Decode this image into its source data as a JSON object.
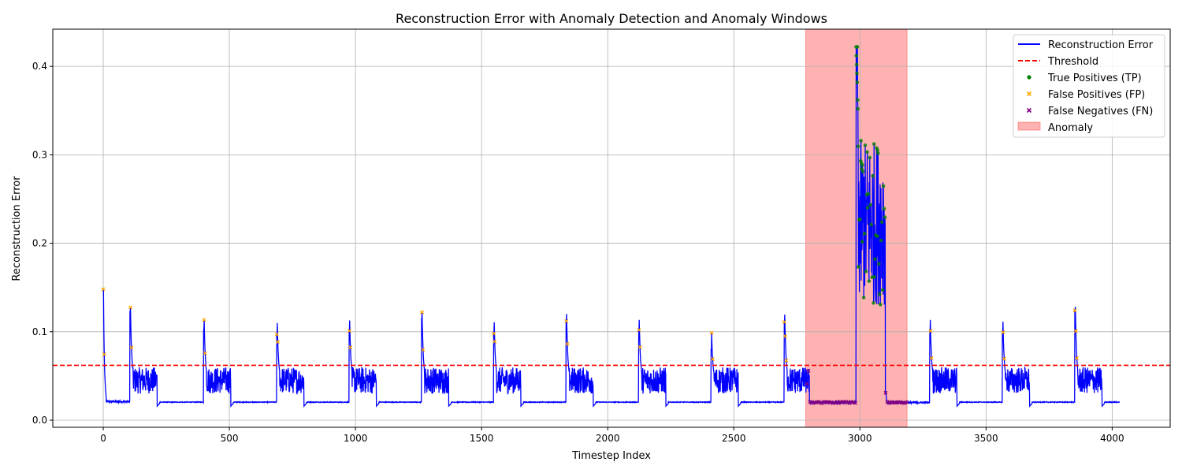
{
  "chart_data": {
    "type": "line",
    "title": "Reconstruction Error with Anomaly Detection and Anomaly Windows",
    "xlabel": "Timestep Index",
    "ylabel": "Reconstruction Error",
    "xlim": [
      -200,
      4230
    ],
    "ylim": [
      -0.008,
      0.442
    ],
    "x_ticks": [
      0,
      500,
      1000,
      1500,
      2000,
      2500,
      3000,
      3500,
      4000
    ],
    "y_ticks": [
      0.0,
      0.1,
      0.2,
      0.3,
      0.4
    ],
    "grid": true,
    "legend_position": "top-right",
    "threshold": 0.062,
    "anomaly_windows": [
      [
        2785,
        3187
      ]
    ],
    "colors": {
      "error_line": "#0000ff",
      "threshold": "#ff0000",
      "true_positive": "#008000",
      "false_positive": "#ffa500",
      "false_negative": "#800080",
      "anomaly_window": "#ff6666"
    },
    "cycles": [
      {
        "start": 0,
        "peak": 0.148,
        "burst": false
      },
      {
        "start": 106,
        "peak": 0.123,
        "burst": true
      },
      {
        "start": 398,
        "peak": 0.102,
        "burst": true
      },
      {
        "start": 688,
        "peak": 0.097,
        "burst": true
      },
      {
        "start": 975,
        "peak": 0.101,
        "burst": true
      },
      {
        "start": 1262,
        "peak": 0.115,
        "burst": true
      },
      {
        "start": 1548,
        "peak": 0.098,
        "burst": true
      },
      {
        "start": 1835,
        "peak": 0.112,
        "burst": true
      },
      {
        "start": 2123,
        "peak": 0.102,
        "burst": true
      },
      {
        "start": 2410,
        "peak": 0.08,
        "burst": true
      },
      {
        "start": 2700,
        "peak": 0.111,
        "burst": true
      },
      {
        "start": 3277,
        "peak": 0.102,
        "burst": true
      },
      {
        "start": 3565,
        "peak": 0.099,
        "burst": true
      },
      {
        "start": 3852,
        "peak": 0.124,
        "burst": true
      }
    ],
    "anomaly_segment": {
      "start": 2985,
      "end": 3100,
      "peak_x": 2990,
      "peak": 0.422,
      "low": 0.13,
      "high": 0.316
    },
    "series_end_x": 4030,
    "legend": [
      {
        "label": "Reconstruction Error",
        "marker": "line"
      },
      {
        "label": "Threshold",
        "marker": "dashed"
      },
      {
        "label": "True Positives (TP)",
        "marker": "dot"
      },
      {
        "label": "False Positives (FP)",
        "marker": "x-orange"
      },
      {
        "label": "False Negatives (FN)",
        "marker": "x-purple"
      },
      {
        "label": "Anomaly",
        "marker": "patch"
      }
    ]
  }
}
